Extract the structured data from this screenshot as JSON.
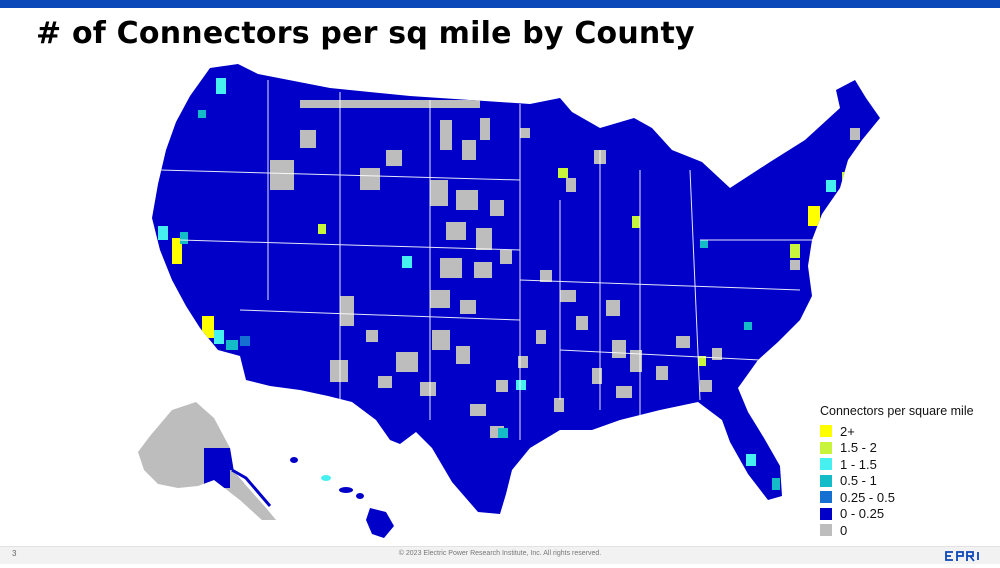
{
  "slide": {
    "title": "# of Connectors per sq mile by County",
    "page_number": "3",
    "copyright": "© 2023 Electric Power Research Institute, Inc. All rights reserved.",
    "logo_text": "EPRI",
    "accent_color": "#0a47b8"
  },
  "map": {
    "type": "choropleth",
    "geography": "United States counties",
    "insets": [
      "Alaska",
      "Hawaii"
    ],
    "legend_position": "bottom-right"
  },
  "legend": {
    "title": "Connectors per square mile",
    "items": [
      {
        "label": "2+",
        "color": "#ffff00"
      },
      {
        "label": "1.5 - 2",
        "color": "#c8f53c"
      },
      {
        "label": "1 - 1.5",
        "color": "#47f0f0"
      },
      {
        "label": "0.5 - 1",
        "color": "#14bcc8"
      },
      {
        "label": "0.25 - 0.5",
        "color": "#1670d2"
      },
      {
        "label": "0 - 0.25",
        "color": "#0000c8"
      },
      {
        "label": "0",
        "color": "#bdbdbd"
      }
    ]
  }
}
